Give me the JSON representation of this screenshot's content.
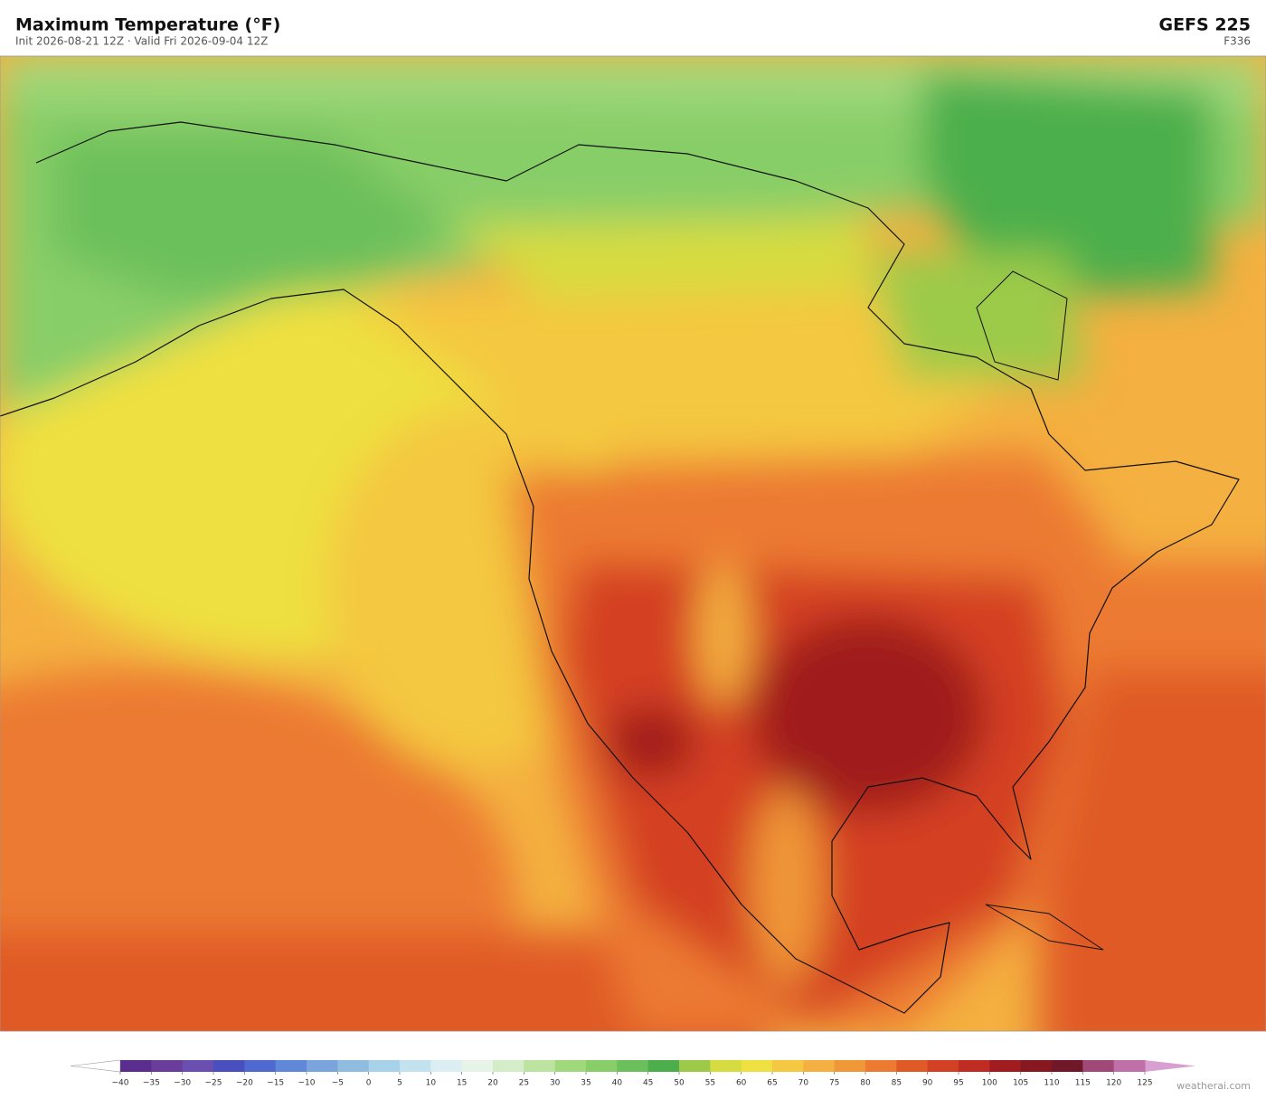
{
  "header": {
    "title": "Maximum Temperature  (°F)",
    "subtitle": "Init 2026-08-21 12Z   ·   Valid Fri 2026-09-04 12Z",
    "model": "GEFS  225",
    "forecast_hour": "F336"
  },
  "colorbar": {
    "ticks": [
      {
        "value": -40,
        "label": "−40"
      },
      {
        "value": -35,
        "label": "−35"
      },
      {
        "value": -30,
        "label": "−30"
      },
      {
        "value": -25,
        "label": "−25"
      },
      {
        "value": -20,
        "label": "−20"
      },
      {
        "value": -15,
        "label": "−15"
      },
      {
        "value": -10,
        "label": "−10"
      },
      {
        "value": -5,
        "label": "−5"
      },
      0,
      5,
      10,
      15,
      20,
      25,
      30,
      35,
      40,
      45,
      50,
      55,
      60,
      65,
      70,
      75,
      80,
      85,
      90,
      95,
      100,
      105,
      110,
      115,
      120,
      125
    ],
    "colors": [
      "#5a2d8f",
      "#6a3d9a",
      "#6a4fb0",
      "#4a4fc0",
      "#4e6ad0",
      "#6088d8",
      "#7aa4dc",
      "#90bce0",
      "#a8d2ea",
      "#c2e2f0",
      "#daeef4",
      "#e6f4e8",
      "#d4ecc8",
      "#bce4a0",
      "#a0d87c",
      "#88ce68",
      "#6cc05c",
      "#4caf4c",
      "#9cca48",
      "#d6dc40",
      "#eee040",
      "#f4c840",
      "#f4b040",
      "#f09838",
      "#ec7a30",
      "#e05a28",
      "#d44024",
      "#c02c22",
      "#a01c1e",
      "#881820",
      "#701828",
      "#a04878",
      "#c070a8"
    ],
    "under_color": "#ffffff",
    "over_color": "#d8a0d0"
  },
  "credit": "weatherai.com"
}
